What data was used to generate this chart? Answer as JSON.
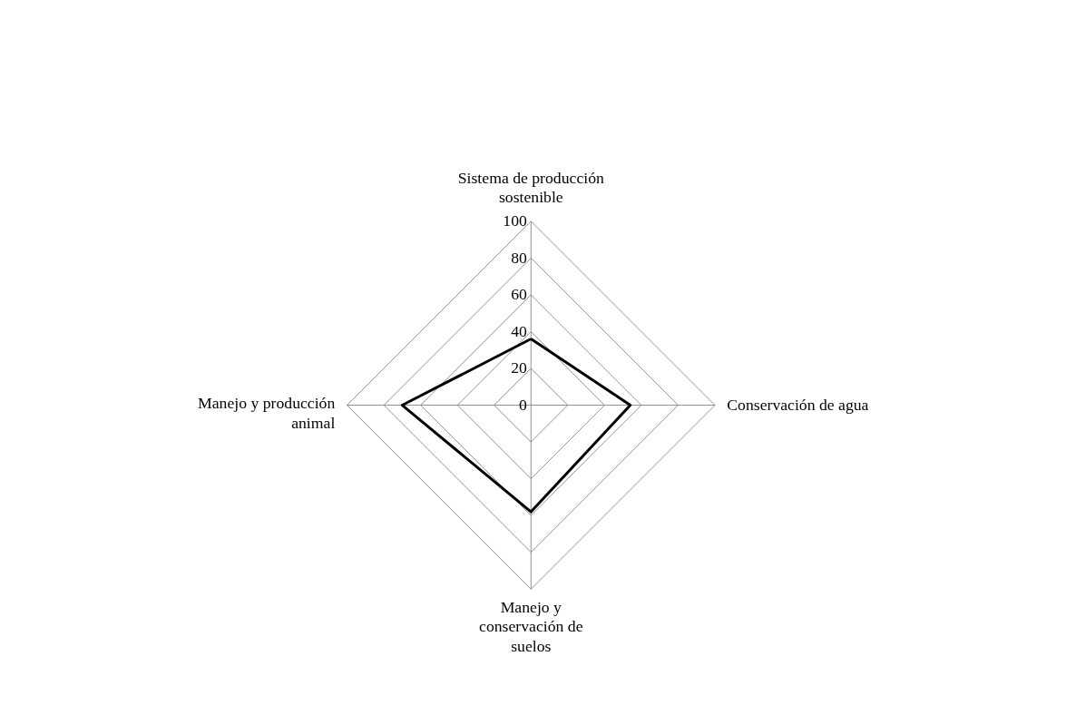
{
  "chart_data": {
    "type": "radar",
    "categories": [
      "Sistema de producción sostenible",
      "Conservación de agua",
      "Manejo y conservación de suelos",
      "Manejo y producción animal"
    ],
    "series": [
      {
        "color": "#000000",
        "values": [
          36,
          54,
          58,
          70
        ]
      }
    ],
    "ylim": [
      0,
      100
    ],
    "yticks": [
      0,
      20,
      40,
      60,
      80,
      100
    ],
    "grid": true
  }
}
